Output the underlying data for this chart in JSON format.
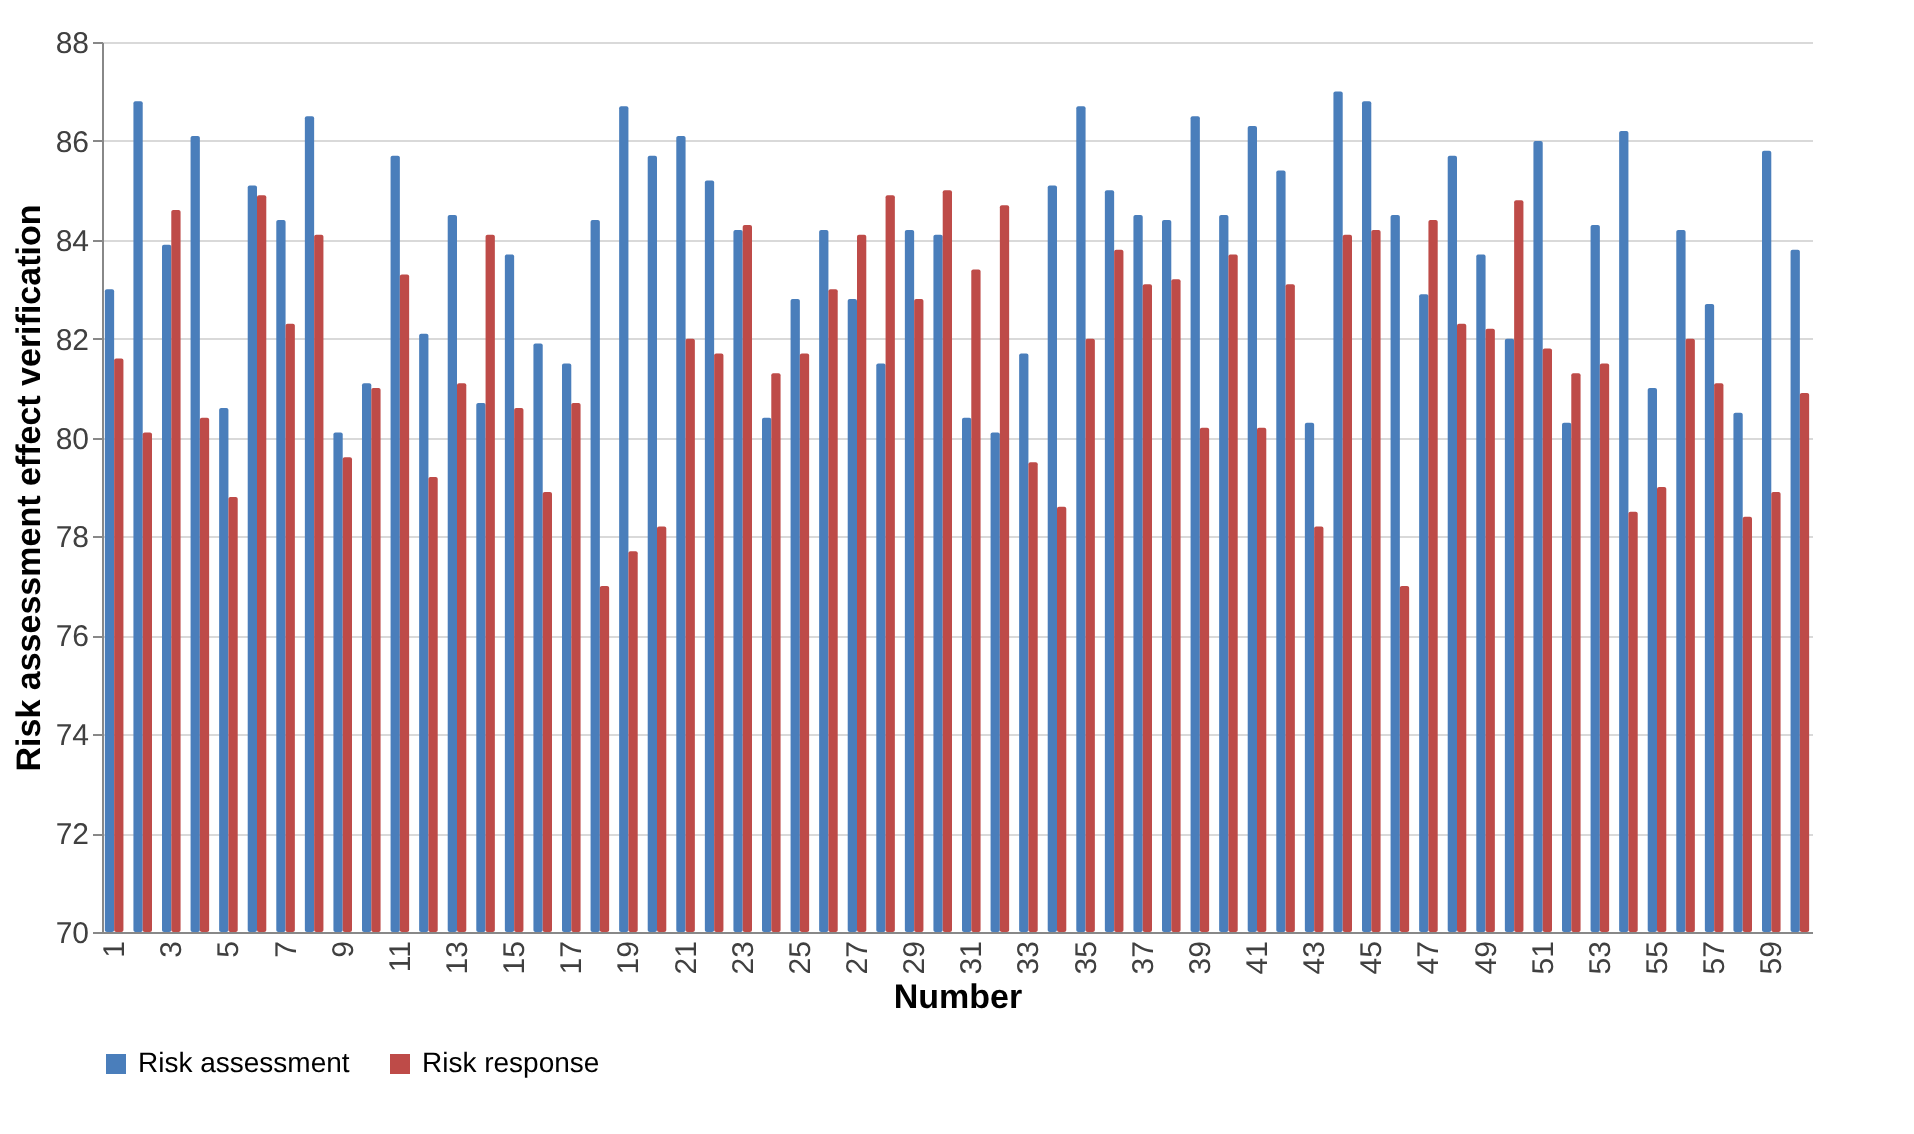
{
  "chart_data": {
    "type": "bar",
    "xlabel": "Number",
    "ylabel": "Risk assessment effect verification",
    "categories": [
      "1",
      null,
      "3",
      null,
      "5",
      null,
      "7",
      null,
      "9",
      null,
      "11",
      null,
      "13",
      null,
      "15",
      null,
      "17",
      null,
      "19",
      null,
      "21",
      null,
      "23",
      null,
      "25",
      null,
      "27",
      null,
      "29",
      null,
      "31",
      null,
      "33",
      null,
      "35",
      null,
      "37",
      null,
      "39",
      null,
      "41",
      null,
      "43",
      null,
      "45",
      null,
      "47",
      null,
      "49",
      null,
      "51",
      null,
      "53",
      null,
      "55",
      null,
      "57",
      null,
      "59",
      null
    ],
    "series": [
      {
        "name": "Risk assessment",
        "color": "#4a7ebb",
        "values": [
          83.0,
          86.8,
          83.9,
          86.1,
          80.6,
          85.1,
          84.4,
          86.5,
          80.1,
          81.1,
          85.7,
          82.1,
          84.5,
          80.7,
          83.7,
          81.9,
          81.5,
          84.4,
          86.7,
          85.7,
          86.1,
          85.2,
          84.2,
          80.4,
          82.8,
          84.2,
          82.8,
          81.5,
          84.2,
          84.1,
          80.4,
          80.1,
          81.7,
          85.1,
          86.7,
          85.0,
          84.5,
          84.4,
          86.5,
          84.5,
          86.3,
          85.4,
          80.3,
          87.0,
          86.8,
          84.5,
          82.9,
          85.7,
          83.7,
          82.0,
          86.0,
          80.3,
          84.3,
          86.2,
          81.0,
          84.2,
          82.7,
          80.5,
          85.8,
          83.8
        ]
      },
      {
        "name": "Risk response",
        "color": "#be4b48",
        "values": [
          81.6,
          80.1,
          84.6,
          80.4,
          78.8,
          84.9,
          82.3,
          84.1,
          79.6,
          81.0,
          83.3,
          79.2,
          81.1,
          84.1,
          80.6,
          78.9,
          80.7,
          77.0,
          77.7,
          78.2,
          82.0,
          81.7,
          84.3,
          81.3,
          81.7,
          83.0,
          84.1,
          84.9,
          82.8,
          85.0,
          83.4,
          84.7,
          79.5,
          78.6,
          82.0,
          83.8,
          83.1,
          83.2,
          80.2,
          83.7,
          80.2,
          83.1,
          78.2,
          84.1,
          84.2,
          77.0,
          84.4,
          82.3,
          82.2,
          84.8,
          81.8,
          81.3,
          81.5,
          78.5,
          79.0,
          82.0,
          81.1,
          78.4,
          78.9,
          80.9
        ]
      }
    ],
    "ylim": [
      70,
      88
    ],
    "yticks": [
      70,
      72,
      74,
      76,
      78,
      80,
      82,
      84,
      86,
      88
    ],
    "grid": "y",
    "legend": "bottom"
  }
}
